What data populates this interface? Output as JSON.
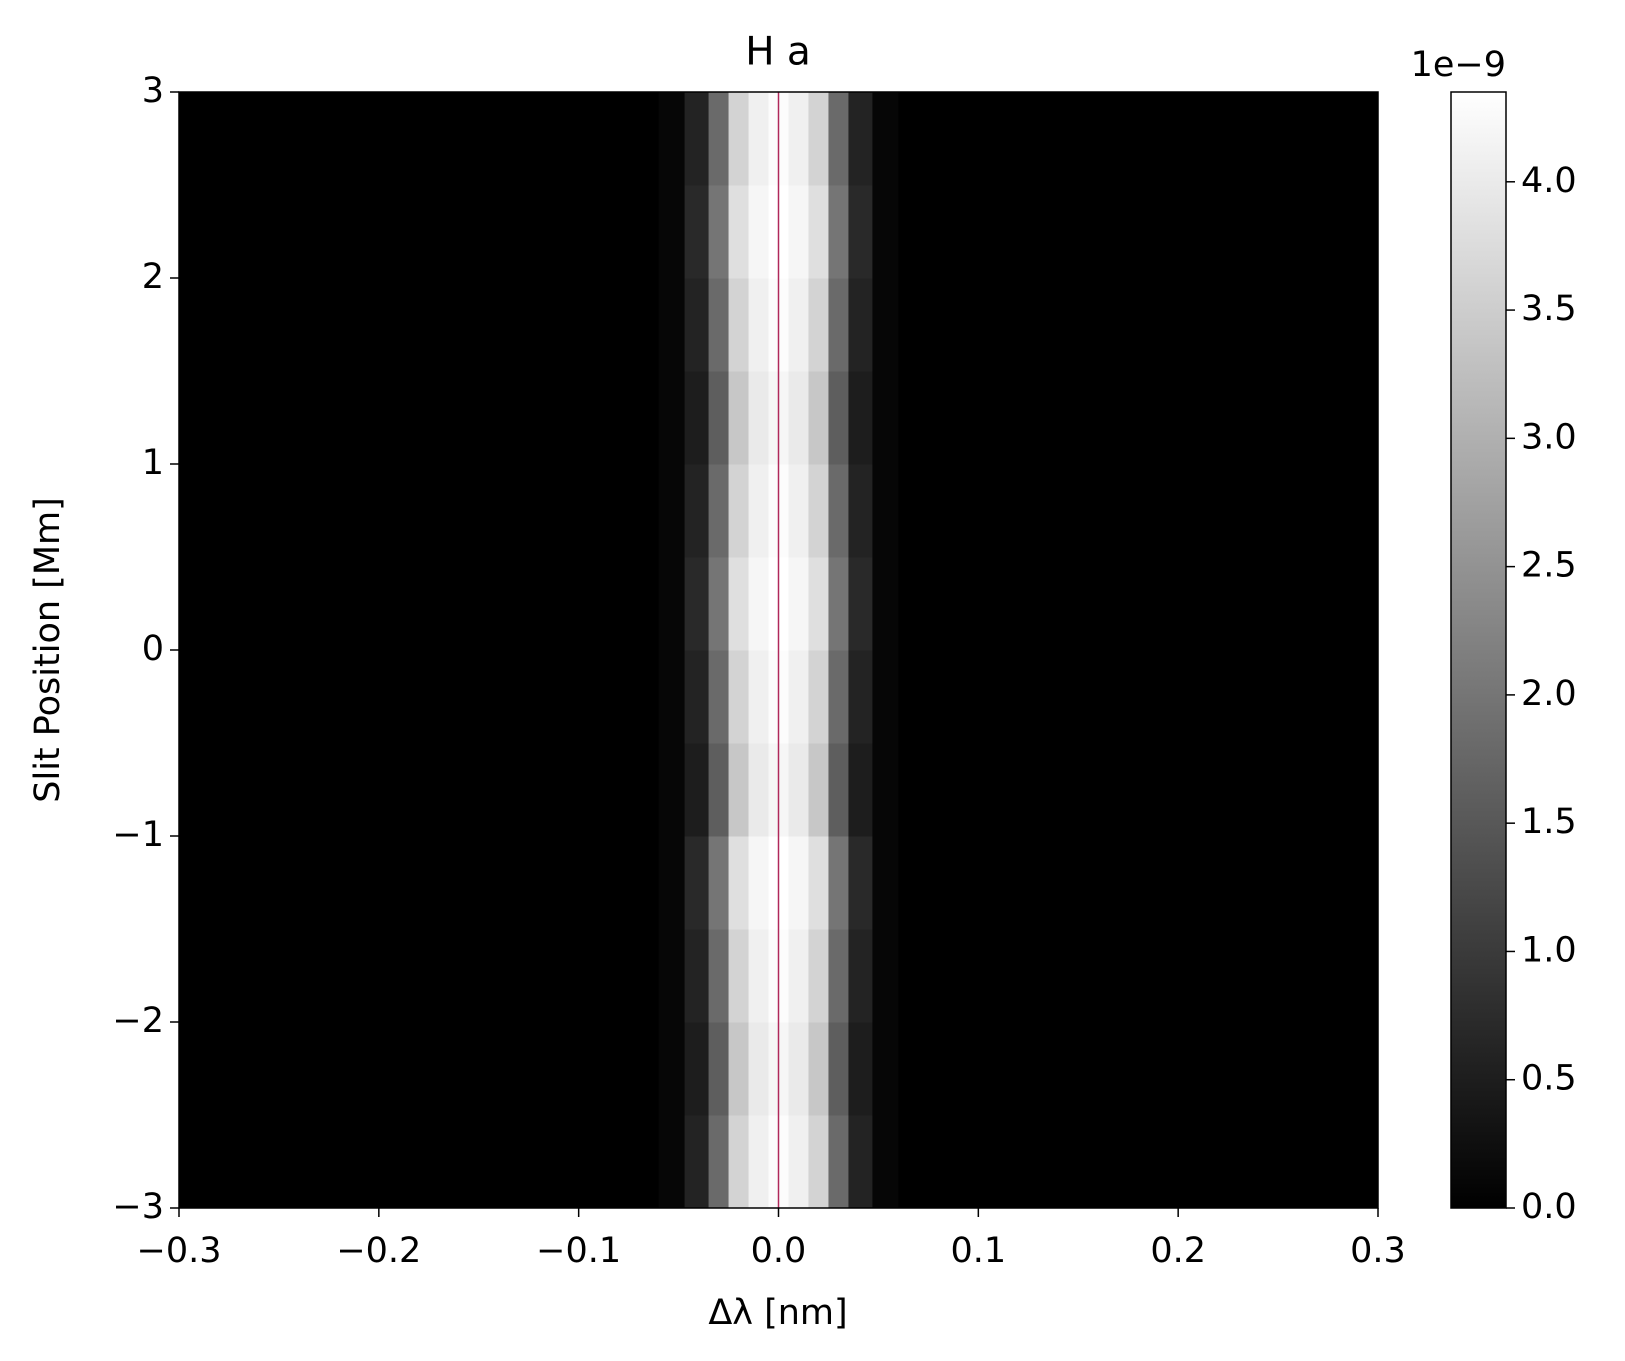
{
  "chart_data": {
    "type": "heatmap",
    "title": "H a",
    "xlabel": "Δλ [nm]",
    "ylabel": "Slit Position [Mm]",
    "x_edges": [
      -0.3,
      -0.06,
      -0.047,
      -0.035,
      -0.025,
      -0.015,
      -0.005,
      0.005,
      0.015,
      0.025,
      0.035,
      0.047,
      0.06,
      0.3
    ],
    "y_edges": [
      -3,
      -2.5,
      -2,
      -1.5,
      -1,
      -0.5,
      0,
      0.5,
      1,
      1.5,
      2,
      2.5,
      3
    ],
    "z": [
      [
        0,
        0.1,
        0.6,
        1.8,
        3.6,
        4.1,
        4.3,
        4.1,
        3.6,
        1.8,
        0.6,
        0.1,
        0
      ],
      [
        0,
        0.1,
        0.5,
        1.6,
        3.4,
        4.0,
        4.2,
        4.0,
        3.4,
        1.6,
        0.5,
        0.1,
        0
      ],
      [
        0,
        0.1,
        0.6,
        1.8,
        3.6,
        4.1,
        4.3,
        4.1,
        3.6,
        1.8,
        0.6,
        0.1,
        0
      ],
      [
        0,
        0.1,
        0.7,
        2.0,
        3.8,
        4.2,
        4.35,
        4.2,
        3.8,
        2.0,
        0.7,
        0.1,
        0
      ],
      [
        0,
        0.1,
        0.5,
        1.6,
        3.4,
        4.0,
        4.2,
        4.0,
        3.4,
        1.6,
        0.5,
        0.1,
        0
      ],
      [
        0,
        0.1,
        0.6,
        1.8,
        3.6,
        4.1,
        4.3,
        4.1,
        3.6,
        1.8,
        0.6,
        0.1,
        0
      ],
      [
        0,
        0.1,
        0.7,
        2.0,
        3.8,
        4.2,
        4.35,
        4.2,
        3.8,
        2.0,
        0.7,
        0.1,
        0
      ],
      [
        0,
        0.1,
        0.6,
        1.8,
        3.6,
        4.1,
        4.3,
        4.1,
        3.6,
        1.8,
        0.6,
        0.1,
        0
      ],
      [
        0,
        0.1,
        0.5,
        1.6,
        3.4,
        4.0,
        4.2,
        4.0,
        3.4,
        1.6,
        0.5,
        0.1,
        0
      ],
      [
        0,
        0.1,
        0.6,
        1.8,
        3.6,
        4.1,
        4.3,
        4.1,
        3.6,
        1.8,
        0.6,
        0.1,
        0
      ],
      [
        0,
        0.1,
        0.7,
        2.0,
        3.8,
        4.2,
        4.35,
        4.2,
        3.8,
        2.0,
        0.7,
        0.1,
        0
      ],
      [
        0,
        0.1,
        0.6,
        1.8,
        3.6,
        4.1,
        4.3,
        4.1,
        3.6,
        1.8,
        0.6,
        0.1,
        0
      ]
    ],
    "xlim": [
      -0.3,
      0.3
    ],
    "xticks": [
      {
        "value": -0.3,
        "label": "−0.3"
      },
      {
        "value": -0.2,
        "label": "−0.2"
      },
      {
        "value": -0.1,
        "label": "−0.1"
      },
      {
        "value": 0,
        "label": "0.0"
      },
      {
        "value": 0.1,
        "label": "0.1"
      },
      {
        "value": 0.2,
        "label": "0.2"
      },
      {
        "value": 0.3,
        "label": "0.3"
      }
    ],
    "ylim": [
      -3,
      3
    ],
    "yticks": [
      {
        "value": -3,
        "label": "−3"
      },
      {
        "value": -2,
        "label": "−2"
      },
      {
        "value": -1,
        "label": "−1"
      },
      0,
      1,
      2,
      3
    ],
    "colormap": "gray",
    "clim": [
      0,
      4.35
    ],
    "cticks": [
      {
        "value": 0,
        "label": "0.0"
      },
      {
        "value": 0.5,
        "label": "0.5"
      },
      {
        "value": 1,
        "label": "1.0"
      },
      {
        "value": 1.5,
        "label": "1.5"
      },
      {
        "value": 2,
        "label": "2.0"
      },
      {
        "value": 2.5,
        "label": "2.5"
      },
      {
        "value": 3,
        "label": "3.0"
      },
      {
        "value": 3.5,
        "label": "3.5"
      },
      {
        "value": 4,
        "label": "4.0"
      }
    ],
    "colorbar_offset_label": "1e−9",
    "vline": {
      "x": 0,
      "color": "#b0285a"
    }
  }
}
